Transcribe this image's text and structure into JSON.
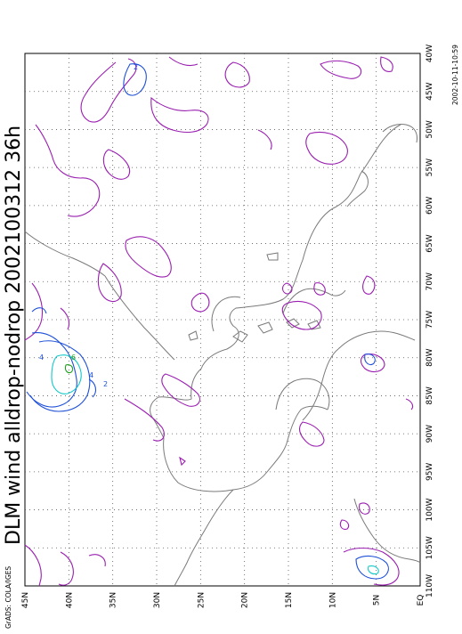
{
  "title": "DLM wind alldrop-nodrop 2002100312 36h",
  "credit": "GrADS: COLA/IGES",
  "timestamp": "2002-10-11-10:59",
  "map": {
    "lat_labels": [
      "EQ",
      "5N",
      "10N",
      "15N",
      "20N",
      "25N",
      "30N",
      "35N",
      "40N",
      "45N"
    ],
    "lon_labels": [
      "110W",
      "105W",
      "100W",
      "95W",
      "90W",
      "85W",
      "80W",
      "75W",
      "70W",
      "65W",
      "60W",
      "55W",
      "50W",
      "45W",
      "40W"
    ],
    "lat_range": [
      0,
      45
    ],
    "lon_range": [
      -110,
      -40
    ],
    "grid": "dotted",
    "coastline_color": "#7a7a7a",
    "contour_colors": {
      "purple": "#9a1fb0",
      "blue": "#1e50d8",
      "cyan": "#14c8c8",
      "green": "#1ea01e"
    },
    "contour_labels": [
      "2",
      "2",
      "4",
      "4",
      "6"
    ]
  }
}
